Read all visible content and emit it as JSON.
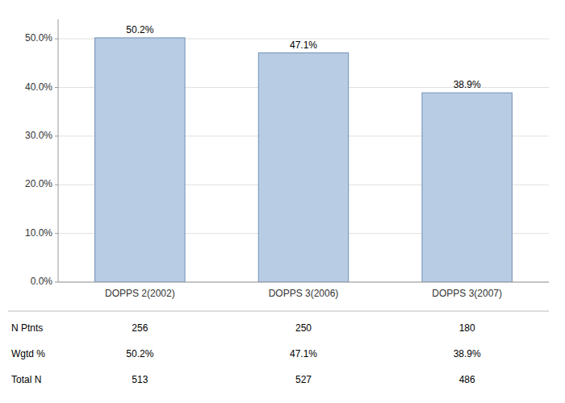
{
  "chart_data": {
    "type": "bar",
    "categories": [
      "DOPPS 2(2002)",
      "DOPPS 3(2006)",
      "DOPPS 3(2007)"
    ],
    "values": [
      50.2,
      47.1,
      38.9
    ],
    "value_labels": [
      "50.2%",
      "47.1%",
      "38.9%"
    ],
    "data_labels": true,
    "color": "#b8cce4",
    "ylim": [
      0,
      54
    ],
    "yticks": [
      {
        "value": 0,
        "label": "0.0%"
      },
      {
        "value": 10,
        "label": "10.0%"
      },
      {
        "value": 20,
        "label": "20.0%"
      },
      {
        "value": 30,
        "label": "30.0%"
      },
      {
        "value": 40,
        "label": "40.0%"
      },
      {
        "value": 50,
        "label": "50.0%"
      }
    ],
    "grid": true,
    "table": {
      "row_labels": [
        "N Ptnts",
        "Wgtd %",
        "Total N"
      ],
      "rows": [
        [
          "256",
          "250",
          "180"
        ],
        [
          "50.2%",
          "47.1%",
          "38.9%"
        ],
        [
          "513",
          "527",
          "486"
        ]
      ]
    }
  }
}
